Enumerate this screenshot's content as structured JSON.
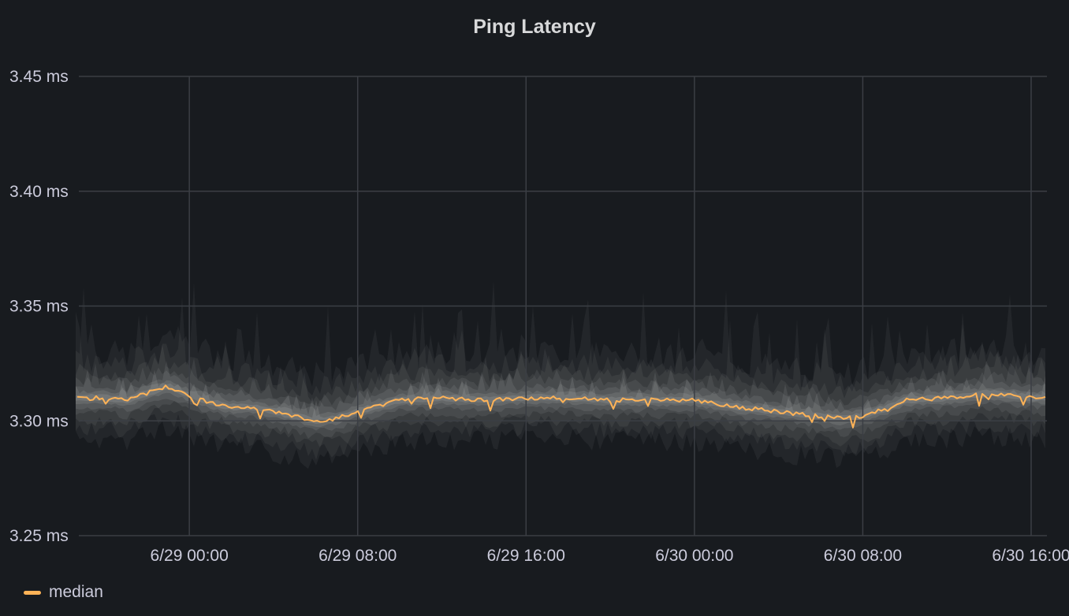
{
  "panel": {
    "title": "Ping Latency"
  },
  "chart_data": {
    "type": "line",
    "title": "Ping Latency",
    "yunit": "ms",
    "ylim": [
      3.25,
      3.45
    ],
    "ytick_values": [
      3.25,
      3.3,
      3.35,
      3.4,
      3.45
    ],
    "ytick_labels": [
      "3.25 ms",
      "3.30 ms",
      "3.35 ms",
      "3.40 ms",
      "3.45 ms"
    ],
    "xlim": [
      "6/28 18:45",
      "6/30 16:45"
    ],
    "xtick_values": [
      "6/29 00:00",
      "6/29 08:00",
      "6/29 16:00",
      "6/30 00:00",
      "6/30 08:00",
      "6/30 16:00"
    ],
    "xtick_labels": [
      "6/29 00:00",
      "6/29 08:00",
      "6/29 16:00",
      "6/30 00:00",
      "6/30 08:00",
      "6/30 16:00"
    ],
    "grid": true,
    "legend_position": "bottom-left",
    "colors": {
      "median": "#ffb357",
      "band": "#ffffff",
      "grid": "#3a3d42",
      "background": "#181b1f"
    },
    "series": [
      {
        "name": "median",
        "x": [
          "6/28 18:45",
          "6/28 20:00",
          "6/28 21:00",
          "6/28 22:00",
          "6/28 23:00",
          "6/29 00:00",
          "6/29 01:00",
          "6/29 02:00",
          "6/29 03:00",
          "6/29 04:00",
          "6/29 05:00",
          "6/29 06:00",
          "6/29 07:00",
          "6/29 08:00",
          "6/29 10:00",
          "6/29 12:00",
          "6/29 14:00",
          "6/29 16:00",
          "6/29 18:00",
          "6/29 20:00",
          "6/29 22:00",
          "6/30 00:00",
          "6/30 02:00",
          "6/30 04:00",
          "6/30 06:00",
          "6/30 07:00",
          "6/30 08:00",
          "6/30 09:00",
          "6/30 10:00",
          "6/30 12:00",
          "6/30 14:00",
          "6/30 16:00",
          "6/30 16:45"
        ],
        "values": [
          3.31,
          3.31,
          3.309,
          3.312,
          3.315,
          3.311,
          3.308,
          3.306,
          3.306,
          3.304,
          3.302,
          3.3,
          3.301,
          3.304,
          3.309,
          3.31,
          3.309,
          3.31,
          3.31,
          3.309,
          3.309,
          3.309,
          3.306,
          3.304,
          3.302,
          3.301,
          3.302,
          3.305,
          3.309,
          3.31,
          3.312,
          3.31,
          3.31
        ]
      }
    ]
  },
  "legend": {
    "label": "median"
  }
}
